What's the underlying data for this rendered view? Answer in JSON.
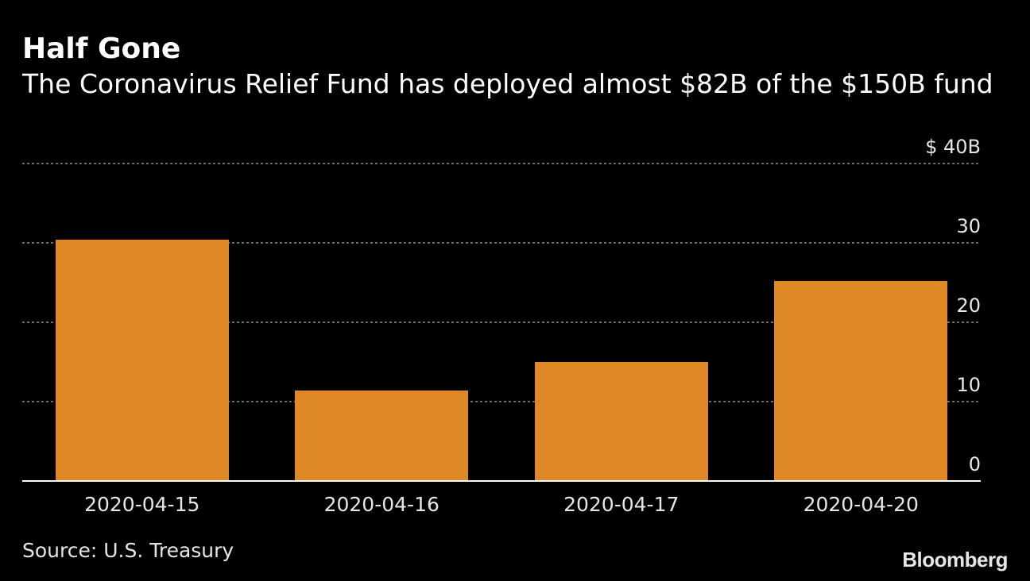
{
  "header": {
    "title": "Half Gone",
    "subtitle": "The Coronavirus Relief Fund has deployed almost $82B of the $150B fund"
  },
  "footer": {
    "source": "Source: U.S. Treasury",
    "logo": "Bloomberg"
  },
  "colors": {
    "background": "#000000",
    "bar": "#de8925",
    "grid": "#8c8c8c",
    "axis": "#ffffff",
    "text": "#ffffff",
    "tick_text": "#e6e6e6"
  },
  "chart_data": {
    "type": "bar",
    "title": "Half Gone",
    "subtitle": "The Coronavirus Relief Fund has deployed almost $82B of the $150B fund",
    "categories": [
      "2020-04-15",
      "2020-04-16",
      "2020-04-17",
      "2020-04-20"
    ],
    "values": [
      30.4,
      11.4,
      15,
      25.2
    ],
    "unit": "billions USD",
    "ylim": [
      0,
      40
    ],
    "yticks": [
      0,
      10,
      20,
      30,
      40
    ],
    "ytick_labels": [
      "0",
      "10",
      "20",
      "30",
      "$ 40B"
    ],
    "y_axis_side": "right",
    "grid": true,
    "grid_style": "dotted",
    "legend": "none",
    "source": "Source: U.S. Treasury"
  }
}
